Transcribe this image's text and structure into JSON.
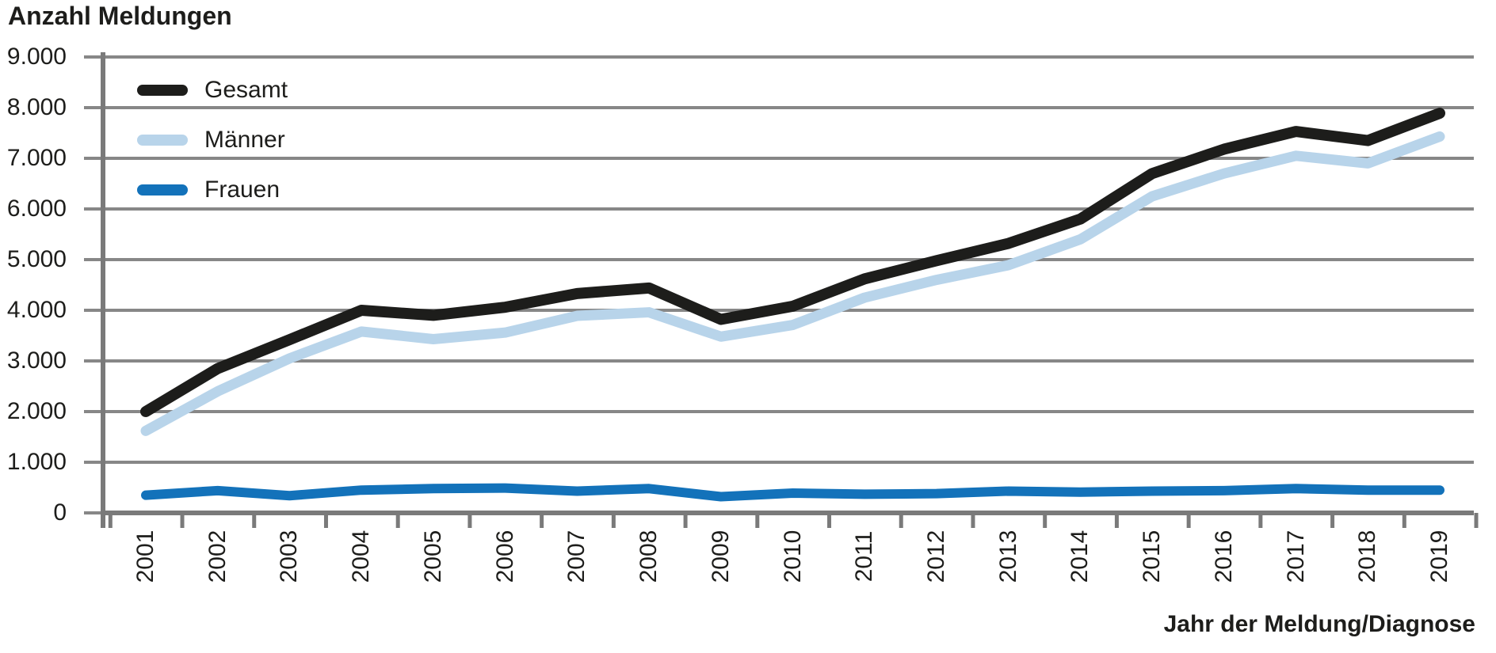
{
  "title": "Anzahl Meldungen",
  "x_axis_title": "Jahr der Meldung/Diagnose",
  "colors": {
    "background": "#ffffff",
    "text": "#1d1d1b",
    "grid": "#878787",
    "axis": "#7a7a7a",
    "gesamt": "#1d1d1b",
    "maenner": "#b8d4ea",
    "frauen": "#1372ba"
  },
  "chart_data": {
    "type": "line",
    "title": "Anzahl Meldungen",
    "xlabel": "Jahr der Meldung/Diagnose",
    "ylabel": "Anzahl Meldungen",
    "categories": [
      "2001",
      "2002",
      "2003",
      "2004",
      "2005",
      "2006",
      "2007",
      "2008",
      "2009",
      "2010",
      "2011",
      "2012",
      "2013",
      "2014",
      "2015",
      "2016",
      "2017",
      "2018",
      "2019"
    ],
    "series": [
      {
        "name": "Gesamt",
        "color": "#1d1d1b",
        "values": [
          2000,
          2850,
          3420,
          4000,
          3900,
          4060,
          4330,
          4440,
          3820,
          4080,
          4620,
          4980,
          5320,
          5800,
          6700,
          7180,
          7530,
          7350,
          7890
        ]
      },
      {
        "name": "Männer",
        "color": "#b8d4ea",
        "values": [
          1620,
          2400,
          3050,
          3580,
          3430,
          3560,
          3890,
          3960,
          3480,
          3710,
          4250,
          4600,
          4890,
          5400,
          6250,
          6700,
          7050,
          6900,
          7430
        ]
      },
      {
        "name": "Frauen",
        "color": "#1372ba",
        "values": [
          350,
          440,
          340,
          450,
          480,
          490,
          430,
          480,
          320,
          390,
          370,
          380,
          430,
          410,
          430,
          440,
          480,
          450,
          450
        ]
      }
    ],
    "ylim": [
      0,
      9000
    ],
    "y_tick_step": 1000,
    "y_tick_labels": [
      "0",
      "1.000",
      "2.000",
      "3.000",
      "4.000",
      "5.000",
      "6.000",
      "7.000",
      "8.000",
      "9.000"
    ],
    "grid": true,
    "legend_position": "top-left",
    "x_tick_label_rotation": -90
  }
}
